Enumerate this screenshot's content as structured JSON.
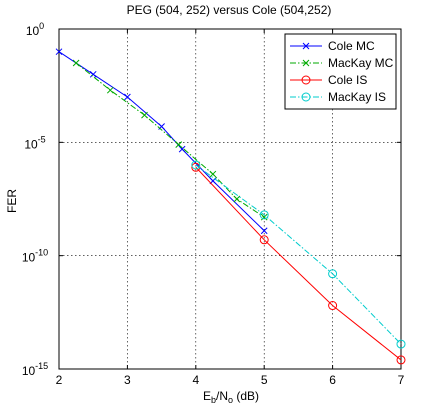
{
  "chart_data": {
    "type": "line",
    "title": "PEG (504, 252) versus Cole (504,252)",
    "xlabel_main": "E",
    "xlabel_sub_b": "b",
    "xlabel_mid": "/N",
    "xlabel_sub_o": "o",
    "xlabel_unit": " (dB)",
    "ylabel": "FER",
    "xlim": [
      2,
      7
    ],
    "ylim_exp": [
      -15,
      0
    ],
    "y_scale": "log",
    "grid": true,
    "legend_position": "top-right",
    "x_ticks": [
      "2",
      "3",
      "4",
      "5",
      "6",
      "7"
    ],
    "y_tick_base": "10",
    "y_ticks": [
      {
        "exp": 0,
        "label": "0"
      },
      {
        "exp": -5,
        "label": "-5"
      },
      {
        "exp": -10,
        "label": "-10"
      },
      {
        "exp": -15,
        "label": "-15"
      }
    ],
    "series": [
      {
        "name": "Cole MC",
        "color": "#0000ff",
        "dash": "solid",
        "marker": "x",
        "x": [
          2.0,
          2.5,
          3.0,
          3.5,
          3.8,
          4.25,
          5.0
        ],
        "log10_y": [
          -1.0,
          -2.0,
          -3.0,
          -4.3,
          -5.3,
          -6.7,
          -8.9
        ]
      },
      {
        "name": "MacKay MC",
        "color": "#00aa00",
        "dash": "dash-dot",
        "marker": "x",
        "x": [
          2.25,
          2.75,
          3.25,
          3.75,
          4.25,
          4.6,
          5.0
        ],
        "log10_y": [
          -1.5,
          -2.7,
          -3.8,
          -5.1,
          -6.4,
          -7.5,
          -8.3
        ]
      },
      {
        "name": "Cole IS",
        "color": "#ff0000",
        "dash": "solid",
        "marker": "o",
        "x": [
          4.0,
          5.0,
          6.0,
          7.0
        ],
        "log10_y": [
          -6.1,
          -9.3,
          -12.2,
          -14.6
        ]
      },
      {
        "name": "MacKay IS",
        "color": "#00cccc",
        "dash": "dash-dot",
        "marker": "o",
        "x": [
          4.0,
          5.0,
          6.0,
          7.0
        ],
        "log10_y": [
          -6.0,
          -8.2,
          -10.8,
          -13.9
        ]
      }
    ]
  }
}
